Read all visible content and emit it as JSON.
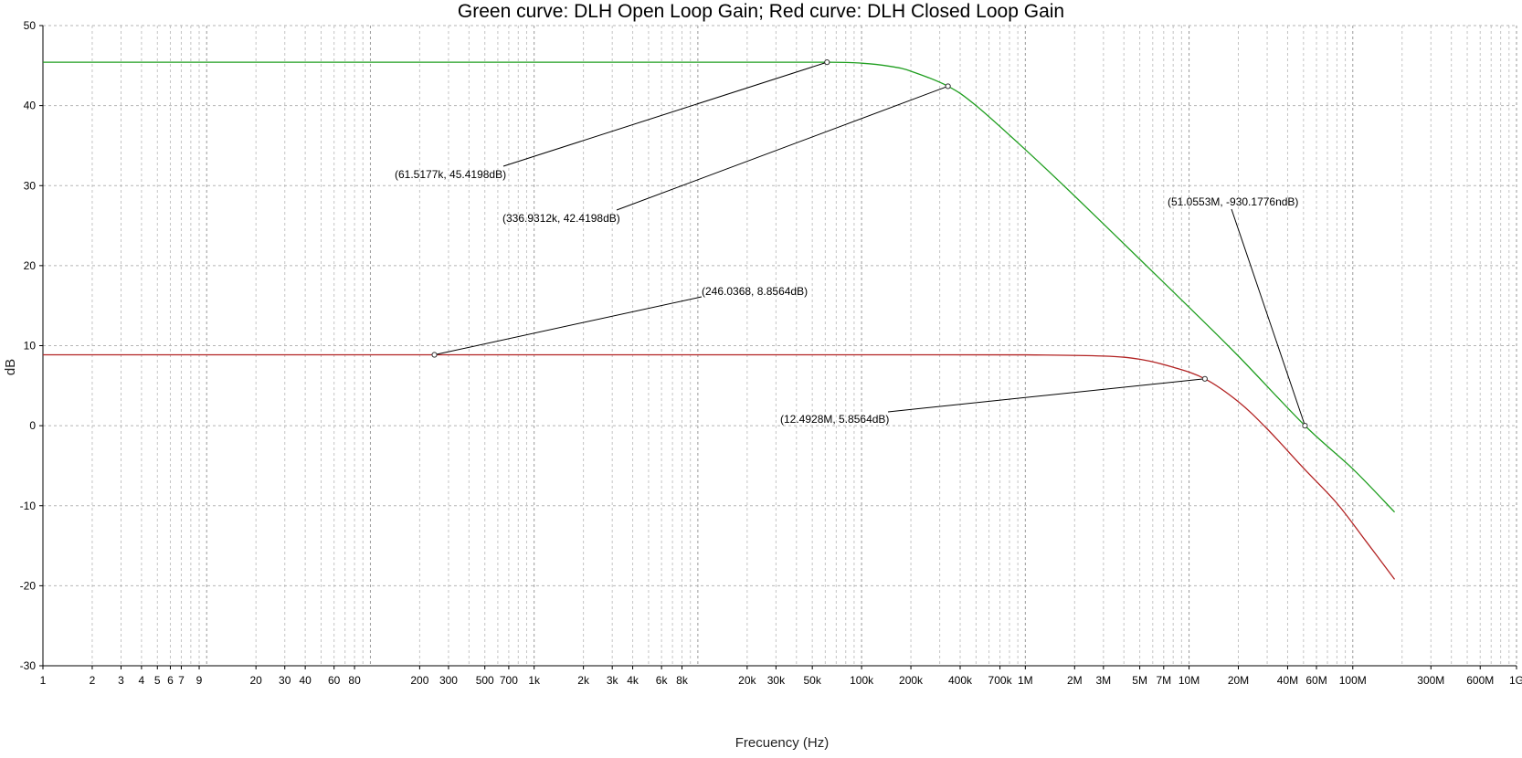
{
  "chart_data": {
    "type": "line",
    "title": "Green curve: DLH Open Loop Gain; Red curve: DLH Closed Loop Gain",
    "xlabel": "Frecuency (Hz)",
    "ylabel": "dB",
    "xscale": "log",
    "xlim": [
      1,
      1000000000
    ],
    "ylim": [
      -30,
      50
    ],
    "grid": true,
    "x_tick_values": [
      1,
      2,
      3,
      4,
      5,
      6,
      7,
      9,
      20,
      30,
      40,
      60,
      80,
      200,
      300,
      500,
      700,
      1000,
      2000,
      3000,
      4000,
      6000,
      8000,
      20000,
      30000,
      50000,
      100000,
      200000,
      400000,
      700000,
      1000000,
      2000000,
      3000000,
      5000000,
      7000000,
      10000000,
      20000000,
      40000000,
      60000000,
      100000000,
      300000000,
      600000000,
      1000000000
    ],
    "x_tick_labels": [
      "1",
      "2",
      "3",
      "4",
      "5",
      "6",
      "7",
      "9",
      "20",
      "30",
      "40",
      "60",
      "80",
      "200",
      "300",
      "500",
      "700",
      "1k",
      "2k",
      "3k",
      "4k",
      "6k",
      "8k",
      "20k",
      "30k",
      "50k",
      "100k",
      "200k",
      "400k",
      "700k",
      "1M",
      "2M",
      "3M",
      "5M",
      "7M",
      "10M",
      "20M",
      "40M",
      "60M",
      "100M",
      "300M",
      "600M",
      "1G"
    ],
    "y_tick_values": [
      50,
      40,
      30,
      20,
      10,
      0,
      -10,
      -20,
      -30
    ],
    "y_tick_labels": [
      "50",
      "40",
      "30",
      "20",
      "10",
      "0",
      "-10",
      "-20",
      "-30"
    ],
    "series": [
      {
        "color": "#1f9e1f",
        "x": [
          1,
          1000,
          10000,
          61517.7,
          100000,
          150000,
          200000,
          336931.2,
          500000,
          1000000,
          2000000,
          5000000,
          10000000,
          20000000,
          51055300,
          100000000,
          180000000
        ],
        "y": [
          45.42,
          45.42,
          45.42,
          45.42,
          45.3,
          44.9,
          44.3,
          42.42,
          40.0,
          34.5,
          28.7,
          20.8,
          14.8,
          8.7,
          0.0,
          -5.4,
          -10.8
        ]
      },
      {
        "color": "#b22222",
        "x": [
          1,
          246.0368,
          1000,
          100000,
          1000000,
          3000000,
          5000000,
          8000000,
          12492800,
          20000000,
          30000000,
          50000000,
          80000000,
          120000000,
          180000000
        ],
        "y": [
          8.86,
          8.86,
          8.86,
          8.86,
          8.85,
          8.7,
          8.3,
          7.3,
          5.86,
          3.0,
          -0.4,
          -5.3,
          -9.7,
          -14.4,
          -19.2
        ]
      }
    ],
    "markers": [
      {
        "x": 61517.7,
        "y": 45.4198,
        "label": "(61.5177k, 45.4198dB)"
      },
      {
        "x": 336931.2,
        "y": 42.4198,
        "label": "(336.9312k, 42.4198dB)"
      },
      {
        "x": 51055300,
        "y": 0.0,
        "label": "(51.0553M, -930.1776ndB)"
      },
      {
        "x": 246.0368,
        "y": 8.8564,
        "label": "(246.0368, 8.8564dB)"
      },
      {
        "x": 12492800,
        "y": 5.8564,
        "label": "(12.4928M, 5.8564dB)"
      }
    ]
  }
}
